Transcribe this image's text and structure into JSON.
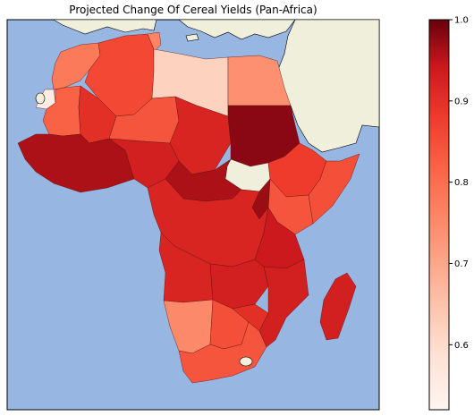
{
  "title": "Projected Change Of Cereal Yields (Pan-Africa)",
  "colors": {
    "ocean": "#97b6e1",
    "land": "#efefdb",
    "border": "#000000"
  },
  "colorbar": {
    "cmap": "Reds",
    "range": [
      0.52,
      1.0
    ],
    "ticks": [
      "1.0",
      "0.9",
      "0.8",
      "0.7",
      "0.6"
    ],
    "tick_values": [
      1.0,
      0.9,
      0.8,
      0.7,
      0.6
    ]
  },
  "regions": [
    {
      "name": "morocco",
      "value": 0.78
    },
    {
      "name": "western-sahara",
      "value": 0.55
    },
    {
      "name": "algeria",
      "value": 0.86
    },
    {
      "name": "tunisia",
      "value": 0.76
    },
    {
      "name": "libya",
      "value": 0.62
    },
    {
      "name": "egypt",
      "value": 0.74
    },
    {
      "name": "mauritania",
      "value": 0.82
    },
    {
      "name": "mali",
      "value": 0.9
    },
    {
      "name": "niger",
      "value": 0.84
    },
    {
      "name": "chad",
      "value": 0.92
    },
    {
      "name": "sudan",
      "value": 0.98
    },
    {
      "name": "south-sudan",
      "value": null
    },
    {
      "name": "ethiopia",
      "value": 0.88
    },
    {
      "name": "somalia",
      "value": 0.85
    },
    {
      "name": "kenya",
      "value": 0.84
    },
    {
      "name": "west-africa",
      "value": 0.96
    },
    {
      "name": "nigeria",
      "value": 0.93
    },
    {
      "name": "central-africa",
      "value": 0.96
    },
    {
      "name": "congo-basin",
      "value": 0.92
    },
    {
      "name": "great-lakes",
      "value": 0.97
    },
    {
      "name": "tanzania",
      "value": 0.94
    },
    {
      "name": "angola",
      "value": 0.92
    },
    {
      "name": "zambia",
      "value": 0.93
    },
    {
      "name": "mozambique",
      "value": 0.93
    },
    {
      "name": "namibia",
      "value": 0.75
    },
    {
      "name": "botswana",
      "value": 0.85
    },
    {
      "name": "zimbabwe",
      "value": 0.9
    },
    {
      "name": "south-africa",
      "value": 0.84
    },
    {
      "name": "madagascar",
      "value": 0.93
    }
  ]
}
